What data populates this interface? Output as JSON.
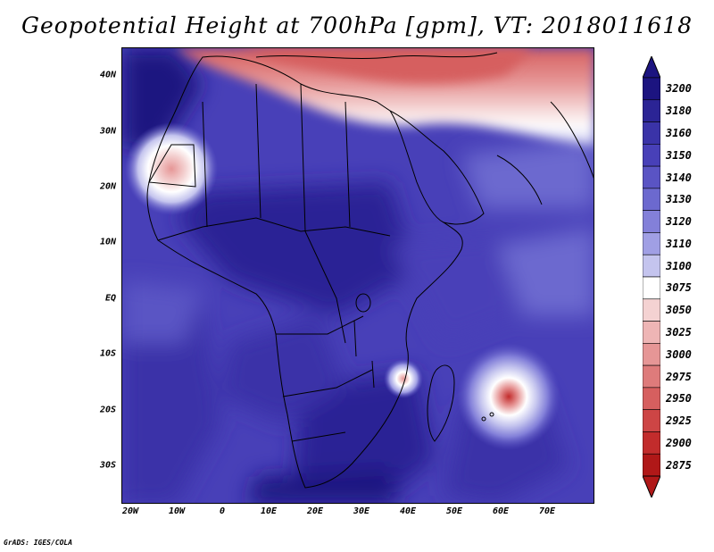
{
  "title": "Geopotential Height at 700hPa [gpm], VT: 2018011618",
  "credit": "GrADS: IGES/COLA",
  "map": {
    "lat_labels": [
      "40N",
      "30N",
      "20N",
      "10N",
      "EQ",
      "10S",
      "20S",
      "30S"
    ],
    "lon_labels": [
      "20W",
      "10W",
      "0",
      "10E",
      "20E",
      "30E",
      "40E",
      "50E",
      "60E",
      "70E"
    ],
    "field": "geopotential height 700hPa",
    "features": [
      {
        "name": "low-northwest-africa",
        "center": [
          -13,
          24
        ]
      },
      {
        "name": "low-mozambique-channel",
        "center": [
          38.5,
          -15
        ]
      },
      {
        "name": "cyclone-indian-ocean",
        "center": [
          62,
          -18
        ]
      }
    ]
  },
  "colorbar": {
    "levels": [
      "3200",
      "3180",
      "3160",
      "3150",
      "3140",
      "3130",
      "3120",
      "3110",
      "3100",
      "3075",
      "3050",
      "3025",
      "3000",
      "2975",
      "2950",
      "2925",
      "2900",
      "2875"
    ],
    "colors": [
      "#1c1480",
      "#2b2495",
      "#3a33a8",
      "#4840b8",
      "#5a54c4",
      "#6c69cf",
      "#8380d9",
      "#a09fe4",
      "#c4c4ee",
      "#ffffff",
      "#f4d2d2",
      "#eeb5b5",
      "#e69696",
      "#de7b7b",
      "#d65f5f",
      "#cd4545",
      "#c22c2c",
      "#b01818"
    ]
  }
}
